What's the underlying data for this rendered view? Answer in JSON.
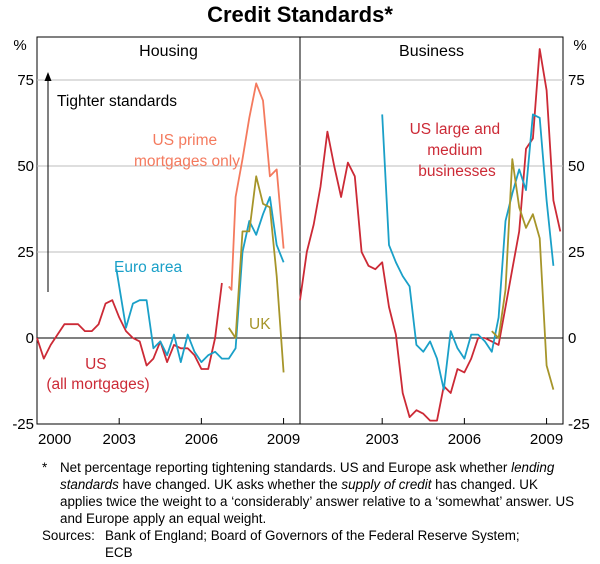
{
  "title": "Credit Standards*",
  "footnote": {
    "marker": "*",
    "text": "Net percentage reporting tightening standards. US and Europe ask whether lending standards have changed. UK asks whether the supply of credit has changed. UK applies twice the weight to a ‘considerably’ answer relative to a ‘somewhat’ answer. US and Europe apply an equal weight.",
    "sources_label": "Sources:",
    "sources_text": "Bank of England; Board of Governors of the Federal Reserve System; ECB"
  },
  "colors": {
    "us": "#cc2a36",
    "us_prime": "#f47a5e",
    "euro": "#1aa0c8",
    "uk": "#a6952a",
    "axis": "#000000",
    "grid": "#bdbdbd"
  },
  "chart_data": [
    {
      "type": "line",
      "panel": "Housing",
      "title": "Housing",
      "y_unit": "%",
      "ylim": [
        -25,
        87.5
      ],
      "yticks": [
        -25,
        0,
        25,
        50,
        75
      ],
      "xlim": [
        2000,
        2009.6
      ],
      "xticks": [
        2000,
        2003,
        2006,
        2009
      ],
      "arrow_label": "Tighter standards",
      "series": [
        {
          "name": "US (all mortgages)",
          "label_lines": [
            "US",
            "(all mortgages)"
          ],
          "color_key": "us",
          "points": [
            [
              2000.0,
              0
            ],
            [
              2000.25,
              -6
            ],
            [
              2000.5,
              -2
            ],
            [
              2000.75,
              1
            ],
            [
              2001.0,
              4
            ],
            [
              2001.25,
              4
            ],
            [
              2001.5,
              4
            ],
            [
              2001.75,
              2
            ],
            [
              2002.0,
              2
            ],
            [
              2002.25,
              4
            ],
            [
              2002.5,
              10
            ],
            [
              2002.75,
              11
            ],
            [
              2003.0,
              6
            ],
            [
              2003.25,
              2
            ],
            [
              2003.5,
              0
            ],
            [
              2003.75,
              -1
            ],
            [
              2004.0,
              -8
            ],
            [
              2004.25,
              -6
            ],
            [
              2004.5,
              -1
            ],
            [
              2004.75,
              -7
            ],
            [
              2005.0,
              -2
            ],
            [
              2005.25,
              -3
            ],
            [
              2005.5,
              -3
            ],
            [
              2005.75,
              -5
            ],
            [
              2006.0,
              -9
            ],
            [
              2006.25,
              -9
            ],
            [
              2006.5,
              0
            ],
            [
              2006.75,
              16
            ]
          ]
        },
        {
          "name": "US prime mortgages only",
          "label_lines": [
            "US prime",
            "mortgages only"
          ],
          "color_key": "us_prime",
          "points": [
            [
              2007.0,
              15
            ],
            [
              2007.1,
              14
            ],
            [
              2007.25,
              41
            ],
            [
              2007.5,
              52
            ],
            [
              2007.75,
              64
            ],
            [
              2008.0,
              74
            ],
            [
              2008.25,
              69
            ],
            [
              2008.5,
              47
            ],
            [
              2008.75,
              49
            ],
            [
              2009.0,
              26
            ]
          ]
        },
        {
          "name": "Euro area",
          "label_lines": [
            "Euro area"
          ],
          "color_key": "euro",
          "points": [
            [
              2002.9,
              20
            ],
            [
              2003.25,
              3
            ],
            [
              2003.5,
              10
            ],
            [
              2003.75,
              11
            ],
            [
              2004.0,
              11
            ],
            [
              2004.25,
              -3
            ],
            [
              2004.5,
              -1
            ],
            [
              2004.75,
              -5
            ],
            [
              2005.0,
              1
            ],
            [
              2005.25,
              -7
            ],
            [
              2005.5,
              1
            ],
            [
              2005.75,
              -4
            ],
            [
              2006.0,
              -7
            ],
            [
              2006.25,
              -5
            ],
            [
              2006.5,
              -4
            ],
            [
              2006.75,
              -6
            ],
            [
              2007.0,
              -6
            ],
            [
              2007.25,
              -3
            ],
            [
              2007.5,
              25
            ],
            [
              2007.75,
              34
            ],
            [
              2008.0,
              30
            ],
            [
              2008.25,
              36
            ],
            [
              2008.5,
              41
            ],
            [
              2008.75,
              27
            ],
            [
              2009.0,
              22
            ]
          ]
        },
        {
          "name": "UK",
          "label_lines": [
            "UK"
          ],
          "color_key": "uk",
          "points": [
            [
              2007.0,
              3
            ],
            [
              2007.25,
              0
            ],
            [
              2007.5,
              31
            ],
            [
              2007.75,
              31
            ],
            [
              2008.0,
              47
            ],
            [
              2008.25,
              39
            ],
            [
              2008.5,
              38
            ],
            [
              2008.75,
              18
            ],
            [
              2009.0,
              -10
            ]
          ]
        }
      ]
    },
    {
      "type": "line",
      "panel": "Business",
      "title": "Business",
      "y_unit": "%",
      "ylim": [
        -25,
        87.5
      ],
      "yticks": [
        -25,
        0,
        25,
        50,
        75
      ],
      "xlim": [
        2000,
        2009.6
      ],
      "xticks": [
        2003,
        2006,
        2009
      ],
      "series": [
        {
          "name": "US large and medium businesses",
          "label_lines": [
            "US large and",
            "medium",
            "businesses"
          ],
          "color_key": "us",
          "points": [
            [
              2000.0,
              11
            ],
            [
              2000.25,
              25
            ],
            [
              2000.5,
              33
            ],
            [
              2000.75,
              44
            ],
            [
              2001.0,
              60
            ],
            [
              2001.25,
              50
            ],
            [
              2001.5,
              41
            ],
            [
              2001.75,
              51
            ],
            [
              2002.0,
              47
            ],
            [
              2002.25,
              25
            ],
            [
              2002.5,
              21
            ],
            [
              2002.75,
              20
            ],
            [
              2003.0,
              22
            ],
            [
              2003.25,
              9
            ],
            [
              2003.5,
              1
            ],
            [
              2003.75,
              -16
            ],
            [
              2004.0,
              -23
            ],
            [
              2004.25,
              -21
            ],
            [
              2004.5,
              -22
            ],
            [
              2004.75,
              -24
            ],
            [
              2005.0,
              -24
            ],
            [
              2005.25,
              -14
            ],
            [
              2005.5,
              -16
            ],
            [
              2005.75,
              -9
            ],
            [
              2006.0,
              -10
            ],
            [
              2006.25,
              -6
            ],
            [
              2006.5,
              0
            ],
            [
              2006.75,
              0
            ],
            [
              2007.0,
              -1
            ],
            [
              2007.25,
              -2
            ],
            [
              2007.5,
              9
            ],
            [
              2007.75,
              20
            ],
            [
              2008.0,
              31
            ],
            [
              2008.25,
              55
            ],
            [
              2008.5,
              58
            ],
            [
              2008.75,
              84
            ],
            [
              2009.0,
              72
            ],
            [
              2009.25,
              40
            ],
            [
              2009.5,
              31
            ]
          ]
        },
        {
          "name": "Euro area",
          "label_lines": [],
          "color_key": "euro",
          "points": [
            [
              2003.0,
              65
            ],
            [
              2003.25,
              27
            ],
            [
              2003.5,
              22
            ],
            [
              2003.75,
              18
            ],
            [
              2004.0,
              15
            ],
            [
              2004.25,
              -2
            ],
            [
              2004.5,
              -4
            ],
            [
              2004.75,
              -1
            ],
            [
              2005.0,
              -6
            ],
            [
              2005.25,
              -15
            ],
            [
              2005.5,
              2
            ],
            [
              2005.75,
              -3
            ],
            [
              2006.0,
              -6
            ],
            [
              2006.25,
              1
            ],
            [
              2006.5,
              1
            ],
            [
              2006.75,
              -1
            ],
            [
              2007.0,
              -4
            ],
            [
              2007.25,
              6
            ],
            [
              2007.5,
              34
            ],
            [
              2007.75,
              42
            ],
            [
              2008.0,
              49
            ],
            [
              2008.25,
              43
            ],
            [
              2008.5,
              65
            ],
            [
              2008.75,
              64
            ],
            [
              2009.0,
              40
            ],
            [
              2009.25,
              21
            ]
          ]
        },
        {
          "name": "UK",
          "label_lines": [],
          "color_key": "uk",
          "points": [
            [
              2007.0,
              2
            ],
            [
              2007.25,
              0
            ],
            [
              2007.5,
              14
            ],
            [
              2007.75,
              52
            ],
            [
              2008.0,
              38
            ],
            [
              2008.25,
              32
            ],
            [
              2008.5,
              36
            ],
            [
              2008.75,
              29
            ],
            [
              2009.0,
              -8
            ],
            [
              2009.25,
              -15
            ]
          ]
        }
      ]
    }
  ]
}
